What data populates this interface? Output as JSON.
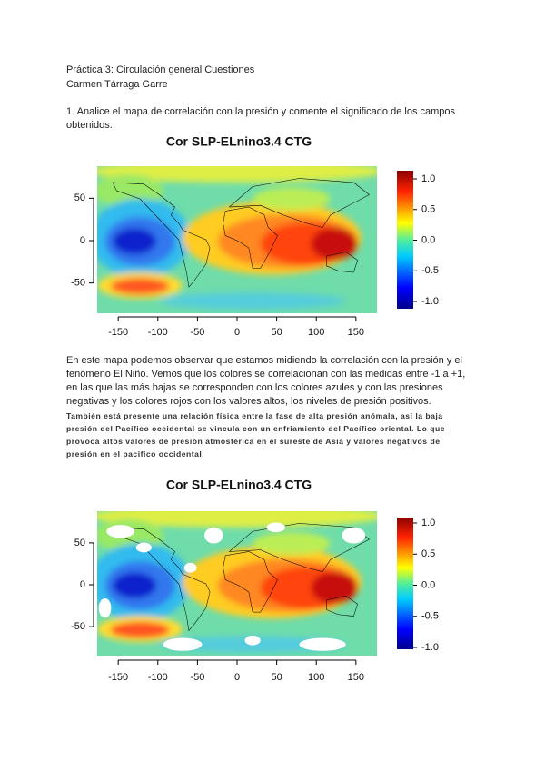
{
  "header": {
    "line1": "Práctica 3: Circulación general Cuestiones",
    "line2": "Carmen Tárraga Garre"
  },
  "question": [
    "1. Analice el mapa de correlación con la presión y comente el significado de los campos",
    "obtenidos."
  ],
  "figures": [
    {
      "title": "Cor SLP-ELnino3.4 CTG",
      "xlim": [
        -180,
        180
      ],
      "ylim": [
        -90,
        90
      ],
      "xticks": [
        -150,
        -100,
        -50,
        0,
        50,
        100,
        150
      ],
      "yticks": [
        50,
        0,
        -50
      ],
      "colorbar": {
        "lim": [
          -1,
          1
        ],
        "ticks": [
          {
            "value": 1,
            "label": "1.0"
          },
          {
            "value": 0.5,
            "label": "0.5"
          },
          {
            "value": 0,
            "label": "0.0"
          },
          {
            "value": -0.5,
            "label": "-0.5"
          },
          {
            "value": -1,
            "label": "-1.0"
          }
        ]
      }
    },
    {
      "title": "Cor SLP-ELnino3.4 CTG",
      "xlim": [
        -180,
        180
      ],
      "ylim": [
        -90,
        90
      ],
      "xticks": [
        -150,
        -100,
        -50,
        0,
        50,
        100,
        150
      ],
      "yticks": [
        50,
        0,
        -50
      ],
      "colorbar": {
        "lim": [
          -1,
          1
        ],
        "ticks": [
          {
            "value": 1,
            "label": "1.0"
          },
          {
            "value": 0.5,
            "label": "0.5"
          },
          {
            "value": 0,
            "label": "0.0"
          },
          {
            "value": -0.5,
            "label": "-0.5"
          },
          {
            "value": -1,
            "label": "-1.0"
          }
        ]
      }
    }
  ],
  "paragraph": [
    "En este mapa podemos observar que estamos midiendo la correlación con la presión y el",
    "fenómeno El Niño. Vemos que los colores se correlacionan con las medidas entre -1 a +1,",
    "en las que las más bajas se corresponden con los colores azules y con las presiones",
    "negativas y los colores rojos con los valores altos, los niveles de presión positivos."
  ],
  "note": [
    "También está presente una relación física entre la fase de alta presión anómala, así  la baja",
    "presión del Pacífico occidental se vincula con un enfriamiento del Pacífico oriental. Lo que",
    "provoca altos valores de presión atmosférica en el sureste de Asia y valores negativos de",
    "presión en el pacifico occidental."
  ]
}
